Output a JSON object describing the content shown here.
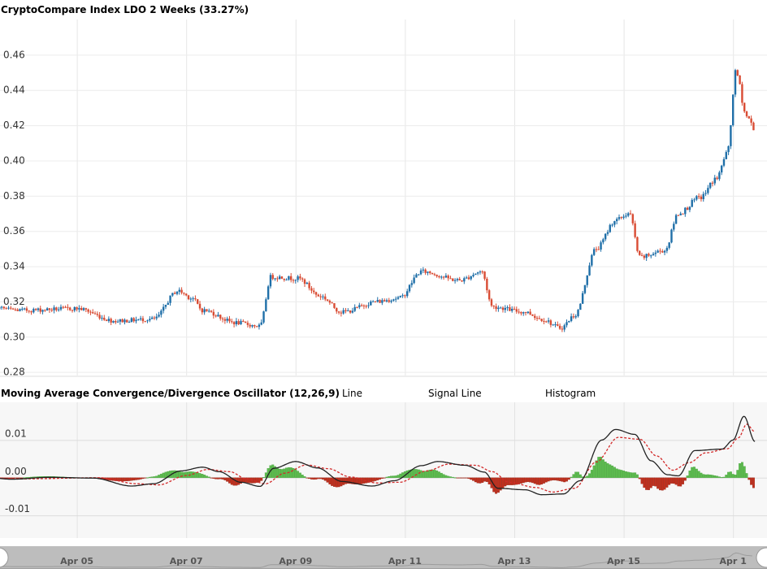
{
  "chart_data": [
    {
      "type": "candlestick",
      "title": "CryptoCompare Index LDO 2 Weeks (33.27%)",
      "yticks": [
        "0.28",
        "0.30",
        "0.32",
        "0.34",
        "0.36",
        "0.38",
        "0.40",
        "0.42",
        "0.44",
        "0.46"
      ],
      "ylim": [
        0.278,
        0.48
      ],
      "x_range": [
        "Apr 03",
        "Apr 16"
      ],
      "colors": {
        "up": "#1f6fa8",
        "down": "#d94c34"
      },
      "grid": true,
      "anchors": [
        {
          "x": 0,
          "y": 0.319
        },
        {
          "x": 1,
          "y": 0.315
        },
        {
          "x": 2,
          "y": 0.316
        },
        {
          "x": 2.7,
          "y": 0.309
        },
        {
          "x": 3.4,
          "y": 0.31
        },
        {
          "x": 3.85,
          "y": 0.326
        },
        {
          "x": 4.1,
          "y": 0.322
        },
        {
          "x": 4.3,
          "y": 0.315
        },
        {
          "x": 4.9,
          "y": 0.308
        },
        {
          "x": 5.35,
          "y": 0.306
        },
        {
          "x": 5.55,
          "y": 0.334
        },
        {
          "x": 6.05,
          "y": 0.333
        },
        {
          "x": 6.45,
          "y": 0.323
        },
        {
          "x": 6.85,
          "y": 0.314
        },
        {
          "x": 7.5,
          "y": 0.32
        },
        {
          "x": 7.9,
          "y": 0.322
        },
        {
          "x": 8.3,
          "y": 0.337
        },
        {
          "x": 9.0,
          "y": 0.332
        },
        {
          "x": 9.4,
          "y": 0.337
        },
        {
          "x": 9.6,
          "y": 0.317
        },
        {
          "x": 10.2,
          "y": 0.314
        },
        {
          "x": 10.5,
          "y": 0.31
        },
        {
          "x": 10.85,
          "y": 0.305
        },
        {
          "x": 11.1,
          "y": 0.312
        },
        {
          "x": 11.5,
          "y": 0.35
        },
        {
          "x": 11.85,
          "y": 0.366
        },
        {
          "x": 12.1,
          "y": 0.37
        },
        {
          "x": 12.3,
          "y": 0.345
        },
        {
          "x": 12.75,
          "y": 0.349
        },
        {
          "x": 13.0,
          "y": 0.37
        },
        {
          "x": 13.4,
          "y": 0.379
        },
        {
          "x": 13.7,
          "y": 0.39
        },
        {
          "x": 13.9,
          "y": 0.405
        },
        {
          "x": 14.05,
          "y": 0.45
        },
        {
          "x": 14.25,
          "y": 0.425
        },
        {
          "x": 14.4,
          "y": 0.418
        }
      ]
    },
    {
      "type": "line",
      "title": "Moving Average Convergence/Divergence Oscillator (12,26,9)",
      "legend": [
        "Line",
        "Signal Line",
        "Histogram"
      ],
      "yticks": [
        "0.01",
        "0.00",
        "-0.01"
      ],
      "ylim": [
        -0.0135,
        0.0175
      ],
      "colors": {
        "line": "#222222",
        "signal": "#d22a2a",
        "hist_pos": "#5dbb4f",
        "hist_neg": "#c0301e"
      },
      "series": [
        {
          "name": "Line",
          "anchors": [
            {
              "x": 0,
              "y": -0.0002
            },
            {
              "x": 0.3,
              "y": 0.0002
            },
            {
              "x": 0.8,
              "y": -0.0004
            },
            {
              "x": 1.5,
              "y": 0.0001
            },
            {
              "x": 2.3,
              "y": -0.0001
            },
            {
              "x": 3.0,
              "y": -0.0022
            },
            {
              "x": 3.4,
              "y": -0.0016
            },
            {
              "x": 3.9,
              "y": 0.0018
            },
            {
              "x": 4.3,
              "y": 0.0028
            },
            {
              "x": 4.6,
              "y": 0.0016
            },
            {
              "x": 5.0,
              "y": -0.0012
            },
            {
              "x": 5.35,
              "y": -0.0023
            },
            {
              "x": 5.6,
              "y": 0.0025
            },
            {
              "x": 6.0,
              "y": 0.0043
            },
            {
              "x": 6.4,
              "y": 0.0026
            },
            {
              "x": 6.85,
              "y": -0.001
            },
            {
              "x": 7.4,
              "y": -0.0022
            },
            {
              "x": 7.8,
              "y": -0.0008
            },
            {
              "x": 8.3,
              "y": 0.0032
            },
            {
              "x": 8.6,
              "y": 0.0043
            },
            {
              "x": 9.1,
              "y": 0.0033
            },
            {
              "x": 9.45,
              "y": 0.0015
            },
            {
              "x": 9.7,
              "y": -0.0028
            },
            {
              "x": 10.2,
              "y": -0.0032
            },
            {
              "x": 10.5,
              "y": -0.0045
            },
            {
              "x": 10.9,
              "y": -0.0043
            },
            {
              "x": 11.2,
              "y": -0.0008
            },
            {
              "x": 11.6,
              "y": 0.01
            },
            {
              "x": 11.85,
              "y": 0.0128
            },
            {
              "x": 12.2,
              "y": 0.0115
            },
            {
              "x": 12.5,
              "y": 0.0045
            },
            {
              "x": 12.8,
              "y": 0.0008
            },
            {
              "x": 13.0,
              "y": 0.0005
            },
            {
              "x": 13.3,
              "y": 0.0072
            },
            {
              "x": 13.8,
              "y": 0.0076
            },
            {
              "x": 14.0,
              "y": 0.01
            },
            {
              "x": 14.2,
              "y": 0.0163
            },
            {
              "x": 14.4,
              "y": 0.0096
            }
          ]
        },
        {
          "name": "Signal Line",
          "anchors": [
            {
              "x": 0,
              "y": 0.0
            },
            {
              "x": 0.4,
              "y": 0.0
            },
            {
              "x": 1.0,
              "y": -0.0003
            },
            {
              "x": 2.4,
              "y": 0.0
            },
            {
              "x": 3.1,
              "y": -0.0016
            },
            {
              "x": 3.5,
              "y": -0.0019
            },
            {
              "x": 4.0,
              "y": 0.0006
            },
            {
              "x": 4.4,
              "y": 0.0022
            },
            {
              "x": 4.8,
              "y": 0.0016
            },
            {
              "x": 5.1,
              "y": -0.0003
            },
            {
              "x": 5.45,
              "y": -0.0016
            },
            {
              "x": 5.8,
              "y": 0.0012
            },
            {
              "x": 6.2,
              "y": 0.0034
            },
            {
              "x": 6.6,
              "y": 0.0024
            },
            {
              "x": 7.0,
              "y": 0.0002
            },
            {
              "x": 7.5,
              "y": -0.0014
            },
            {
              "x": 7.9,
              "y": -0.0012
            },
            {
              "x": 8.4,
              "y": 0.0018
            },
            {
              "x": 8.8,
              "y": 0.0036
            },
            {
              "x": 9.3,
              "y": 0.0033
            },
            {
              "x": 9.6,
              "y": 0.0016
            },
            {
              "x": 9.9,
              "y": -0.0012
            },
            {
              "x": 10.4,
              "y": -0.0026
            },
            {
              "x": 10.7,
              "y": -0.0038
            },
            {
              "x": 11.1,
              "y": -0.0028
            },
            {
              "x": 11.5,
              "y": 0.0042
            },
            {
              "x": 11.9,
              "y": 0.0107
            },
            {
              "x": 12.3,
              "y": 0.0102
            },
            {
              "x": 12.6,
              "y": 0.0058
            },
            {
              "x": 12.9,
              "y": 0.002
            },
            {
              "x": 13.2,
              "y": 0.004
            },
            {
              "x": 13.5,
              "y": 0.0066
            },
            {
              "x": 13.9,
              "y": 0.0077
            },
            {
              "x": 14.1,
              "y": 0.0106
            },
            {
              "x": 14.25,
              "y": 0.0142
            },
            {
              "x": 14.4,
              "y": 0.0122
            }
          ]
        }
      ]
    }
  ],
  "macd_range": [
    -0.016,
    0.02
  ],
  "navigator": {
    "labels": [
      "Apr 05",
      "Apr 07",
      "Apr 09",
      "Apr 11",
      "Apr 13",
      "Apr 15",
      "Apr 1"
    ]
  }
}
